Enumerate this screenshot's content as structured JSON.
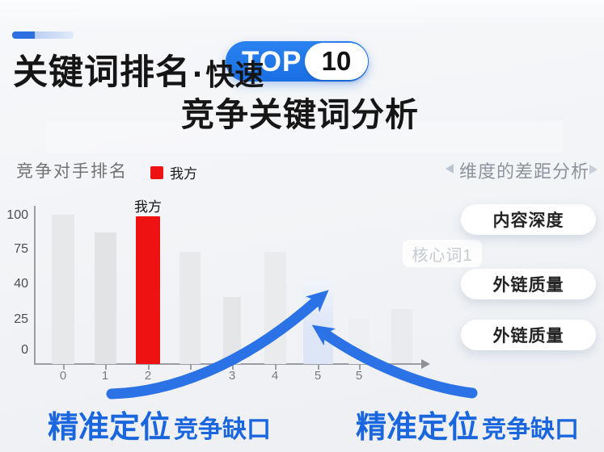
{
  "header": {
    "title_main": "关键词排名",
    "title_dot": "·",
    "title_fast": "快速",
    "badge": {
      "top": "TOP",
      "number": "10",
      "bg": "#1e78ea"
    },
    "subtitle": "竞争关键词分析"
  },
  "chart": {
    "header": "竞争对手排名",
    "legend": {
      "label": "我方",
      "swatch_color": "#ee1212"
    }
  },
  "chart_data": {
    "type": "bar",
    "title": "竞争对手排名",
    "categories": [
      "0",
      "1",
      "2",
      "",
      "3",
      "4",
      "5",
      "5"
    ],
    "values": [
      100,
      88,
      99,
      75,
      45,
      75,
      55,
      30
    ],
    "bar_colors": [
      "#e7e8ea",
      "#e2e3e5",
      "#ee1212",
      "#e8e9eb",
      "#e5e6e8",
      "#eaebed",
      "#dce6f7",
      "#edeff3"
    ],
    "highlight_index": 2,
    "highlight_label": "我方",
    "legend": [
      "我方"
    ],
    "y_ticks": [
      "100",
      "75",
      "40",
      "25",
      "0"
    ],
    "ylim": [
      0,
      105
    ],
    "grid": false,
    "legend_position": "top",
    "xlabel": "",
    "ylabel": ""
  },
  "panel": {
    "title": "维度的差距分析",
    "chip": "核心词1",
    "pills": [
      "内容深度",
      "外链质量",
      "外链质量"
    ]
  },
  "callouts": {
    "left": {
      "em": "精准定位",
      "rest": "竞争缺口"
    },
    "right": {
      "em": "精准定位",
      "rest": "竞争缺口"
    }
  },
  "colors": {
    "accent_blue": "#2a72e6",
    "text_blue": "#1a66de",
    "red": "#ee1212",
    "gray_bar": "#e6e7e9"
  }
}
